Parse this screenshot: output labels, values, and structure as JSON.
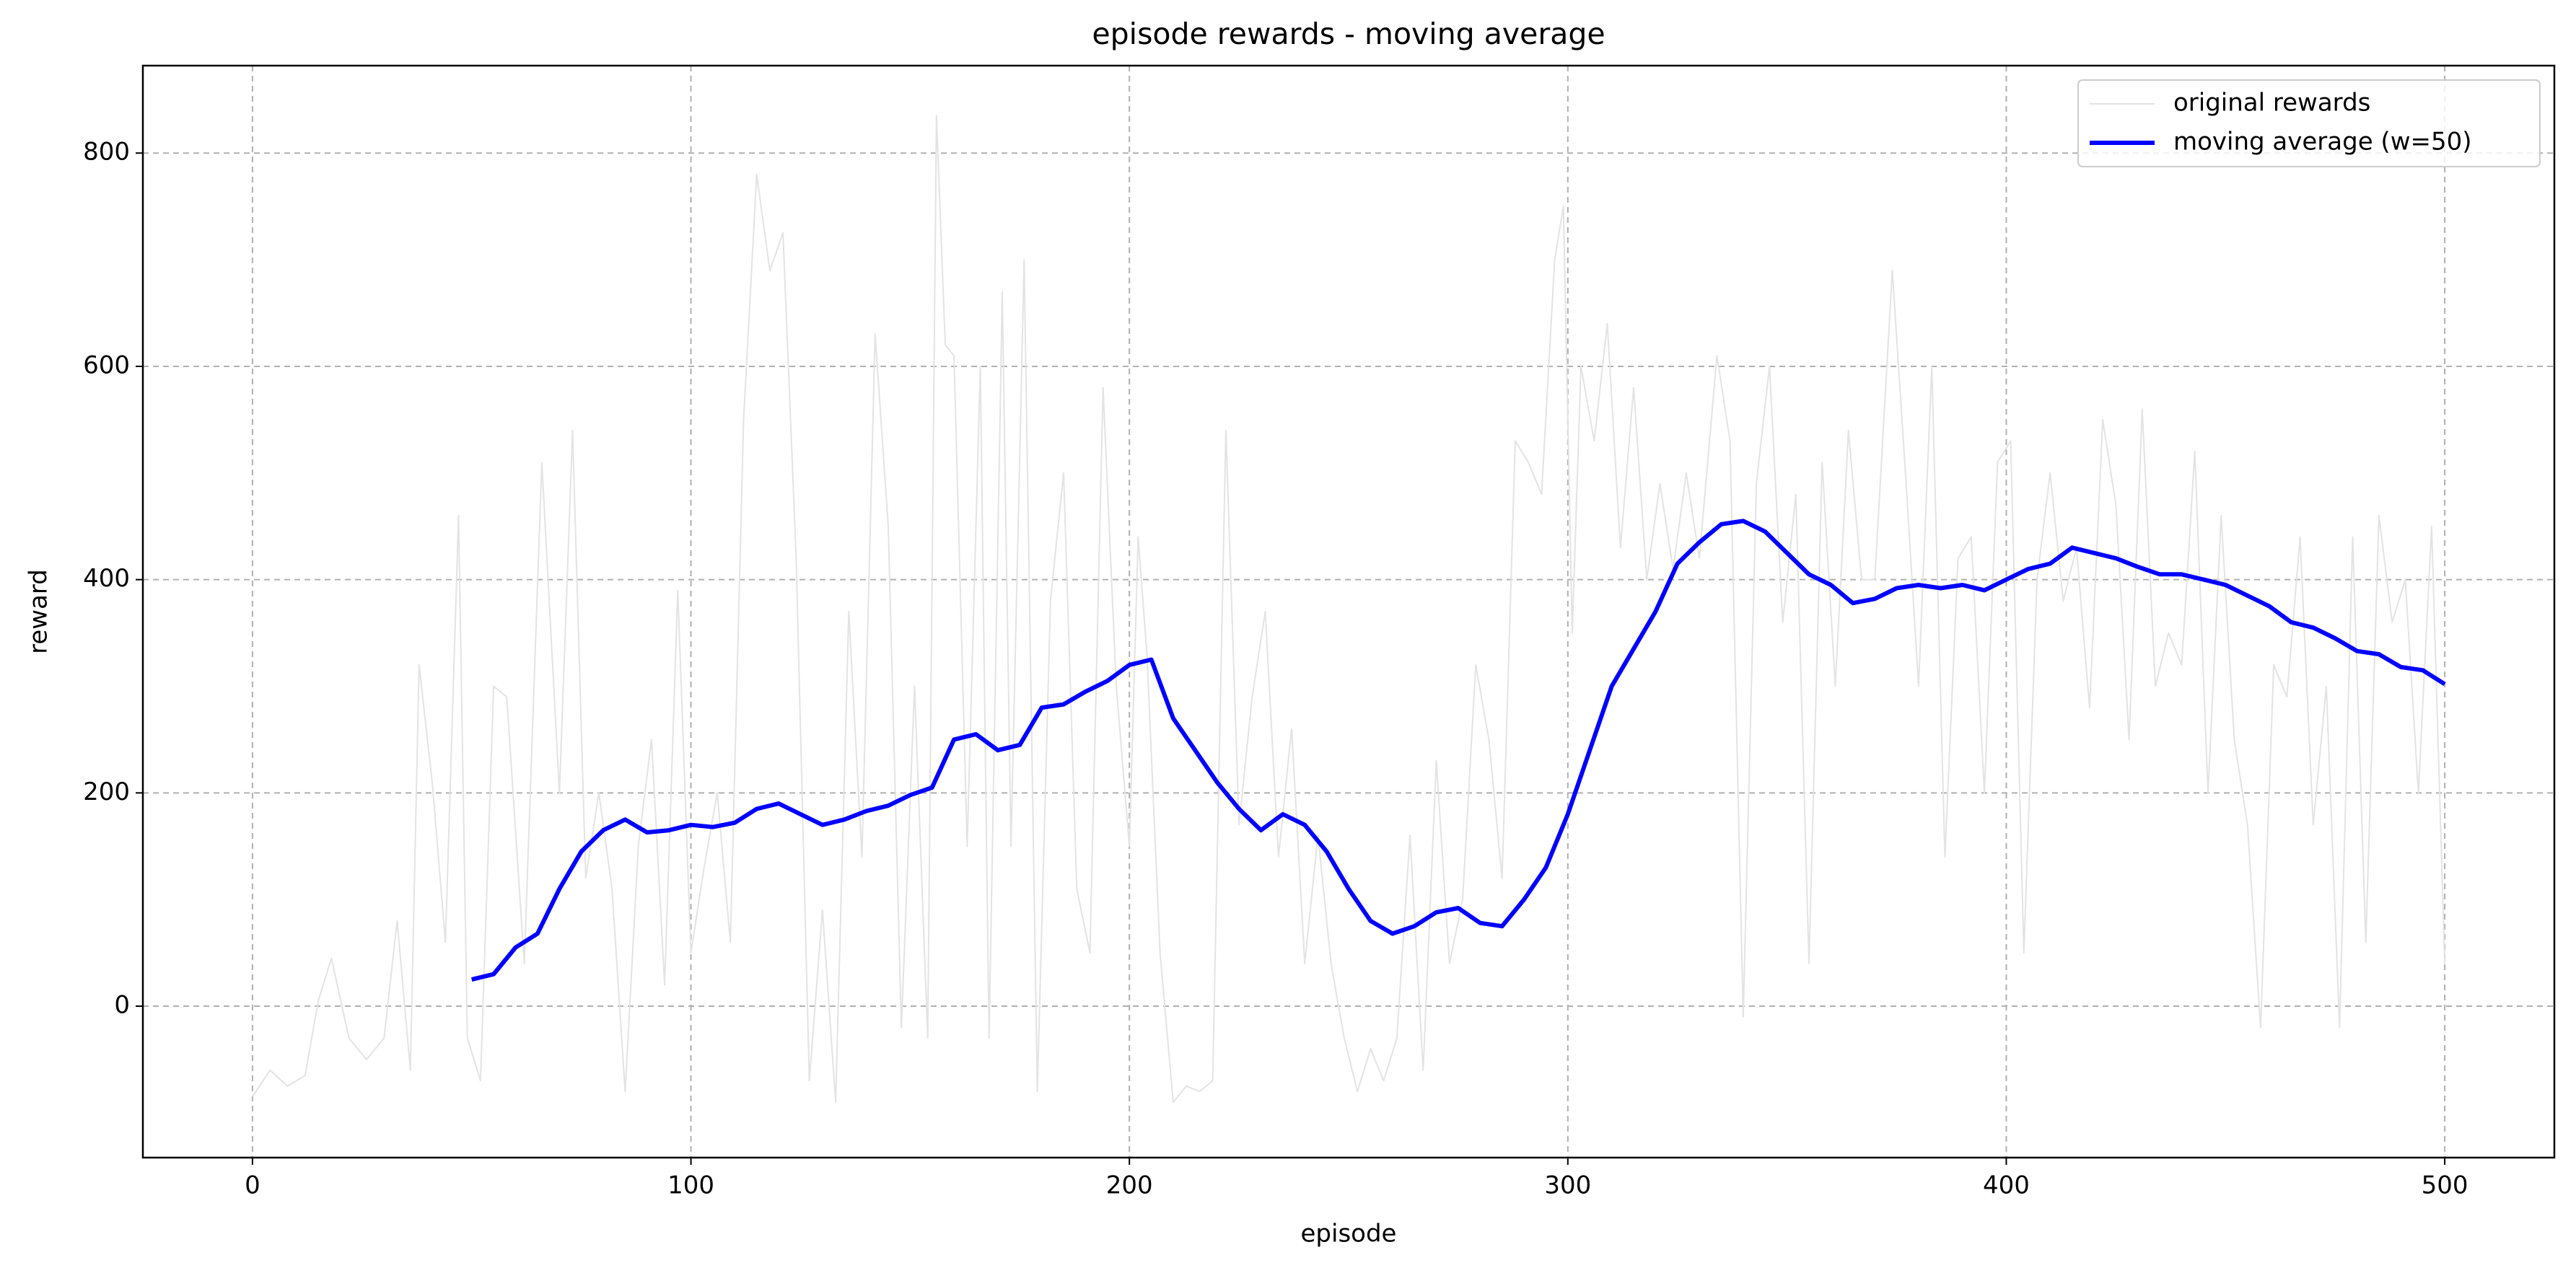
{
  "chart_data": {
    "type": "line",
    "title": "episode rewards - moving average",
    "xlabel": "episode",
    "ylabel": "reward",
    "xlim": [
      -25,
      525
    ],
    "ylim": [
      -142,
      882
    ],
    "xticks": [
      0,
      100,
      200,
      300,
      400,
      500
    ],
    "yticks": [
      0,
      200,
      400,
      600,
      800
    ],
    "grid": true,
    "legend": "upper right",
    "series": [
      {
        "name": "original rewards",
        "color": "#e3e3e3",
        "width": 2,
        "x": [
          0,
          4,
          8,
          12,
          15,
          18,
          22,
          26,
          30,
          33,
          36,
          38,
          41,
          44,
          47,
          49,
          52,
          55,
          58,
          62,
          66,
          70,
          73,
          76,
          79,
          82,
          85,
          88,
          91,
          94,
          97,
          100,
          103,
          106,
          109,
          112,
          115,
          118,
          121,
          124,
          127,
          130,
          133,
          136,
          139,
          142,
          145,
          148,
          151,
          154,
          156,
          158,
          160,
          163,
          166,
          168,
          171,
          173,
          176,
          179,
          182,
          185,
          188,
          191,
          194,
          197,
          200,
          202,
          204,
          207,
          210,
          213,
          216,
          219,
          222,
          225,
          228,
          231,
          234,
          237,
          240,
          243,
          246,
          249,
          252,
          255,
          258,
          261,
          264,
          267,
          270,
          273,
          276,
          279,
          282,
          285,
          288,
          291,
          294,
          297,
          299,
          301,
          303,
          306,
          309,
          312,
          315,
          318,
          321,
          324,
          327,
          330,
          334,
          337,
          340,
          343,
          346,
          349,
          352,
          355,
          358,
          361,
          364,
          367,
          370,
          374,
          377,
          380,
          383,
          386,
          389,
          392,
          395,
          398,
          401,
          404,
          407,
          410,
          413,
          416,
          419,
          422,
          425,
          428,
          431,
          434,
          437,
          440,
          443,
          446,
          449,
          452,
          455,
          458,
          461,
          464,
          467,
          470,
          473,
          476,
          479,
          482,
          485,
          488,
          491,
          494,
          497,
          500
        ],
        "values": [
          -85,
          -60,
          -75,
          -65,
          5,
          45,
          -30,
          -50,
          -30,
          80,
          -60,
          320,
          210,
          60,
          460,
          -30,
          -70,
          300,
          290,
          40,
          510,
          200,
          540,
          120,
          200,
          110,
          -80,
          150,
          250,
          20,
          390,
          50,
          130,
          200,
          60,
          550,
          780,
          690,
          725,
          420,
          -70,
          90,
          -90,
          370,
          140,
          630,
          450,
          -20,
          300,
          -30,
          835,
          620,
          610,
          150,
          600,
          -30,
          670,
          150,
          700,
          -80,
          380,
          500,
          110,
          50,
          580,
          300,
          150,
          440,
          330,
          50,
          -90,
          -75,
          -80,
          -70,
          540,
          170,
          290,
          370,
          140,
          260,
          40,
          160,
          40,
          -30,
          -80,
          -40,
          -70,
          -30,
          160,
          -60,
          230,
          40,
          100,
          320,
          250,
          120,
          530,
          510,
          480,
          700,
          750,
          350,
          600,
          530,
          640,
          430,
          580,
          400,
          490,
          410,
          500,
          420,
          610,
          530,
          -10,
          490,
          600,
          360,
          480,
          40,
          510,
          300,
          540,
          400,
          400,
          690,
          500,
          300,
          600,
          140,
          420,
          440,
          200,
          510,
          530,
          50,
          400,
          500,
          380,
          430,
          280,
          550,
          470,
          250,
          560,
          300,
          350,
          320,
          520,
          200,
          460,
          250,
          170,
          -20,
          320,
          290,
          440,
          170,
          300,
          -20,
          440,
          60,
          460,
          360,
          400,
          200,
          450,
          40
        ]
      },
      {
        "name": "moving average (w=50)",
        "color": "#0000ff",
        "width": 6,
        "x": [
          50,
          55,
          60,
          65,
          70,
          75,
          80,
          85,
          90,
          95,
          100,
          105,
          110,
          115,
          120,
          125,
          130,
          135,
          140,
          145,
          150,
          155,
          160,
          165,
          170,
          175,
          180,
          185,
          190,
          195,
          200,
          205,
          210,
          215,
          220,
          225,
          230,
          235,
          240,
          245,
          250,
          255,
          260,
          265,
          270,
          275,
          280,
          285,
          290,
          295,
          300,
          305,
          310,
          315,
          320,
          325,
          330,
          335,
          340,
          345,
          350,
          355,
          360,
          365,
          370,
          375,
          380,
          385,
          390,
          395,
          400,
          405,
          410,
          415,
          420,
          425,
          430,
          435,
          440,
          445,
          450,
          455,
          460,
          465,
          470,
          475,
          480,
          485,
          490,
          495,
          500
        ],
        "values": [
          25,
          30,
          55,
          68,
          110,
          145,
          165,
          175,
          163,
          165,
          170,
          168,
          172,
          185,
          190,
          180,
          170,
          175,
          183,
          188,
          198,
          205,
          250,
          255,
          240,
          245,
          280,
          283,
          295,
          305,
          320,
          325,
          270,
          240,
          210,
          185,
          165,
          180,
          170,
          145,
          110,
          80,
          68,
          75,
          88,
          92,
          78,
          75,
          100,
          130,
          180,
          240,
          300,
          335,
          370,
          415,
          435,
          452,
          455,
          445,
          425,
          405,
          395,
          378,
          382,
          392,
          395,
          392,
          395,
          390,
          400,
          410,
          415,
          430,
          425,
          420,
          412,
          405,
          405,
          400,
          395,
          385,
          375,
          360,
          355,
          345,
          333,
          330,
          318,
          315,
          302
        ]
      }
    ]
  }
}
